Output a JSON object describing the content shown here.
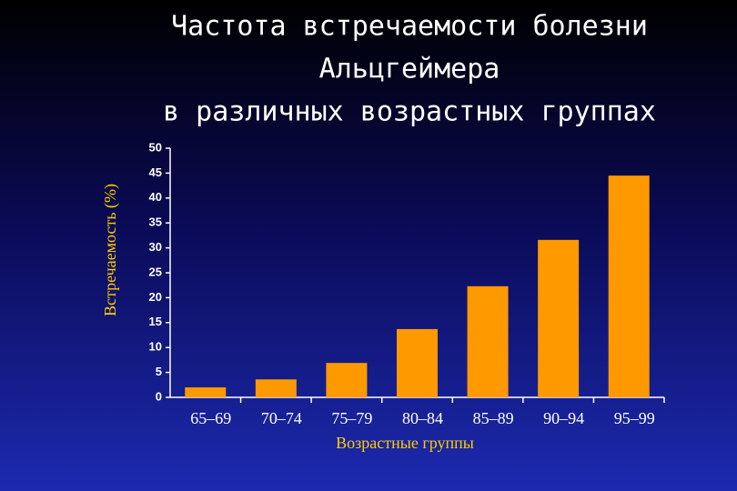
{
  "chart_data": {
    "type": "bar",
    "title": [
      "Частота встречаемости болезни",
      "Альцгеймера",
      "в различных возрастных группах"
    ],
    "x_label": "Возрастные группы",
    "y_label": "Встречаемость (%)",
    "categories": [
      "65–69",
      "70–74",
      "75–79",
      "80–84",
      "85–89",
      "90–94",
      "95–99"
    ],
    "values": [
      2.0,
      3.6,
      6.9,
      13.7,
      22.3,
      31.6,
      44.5
    ],
    "color": "#ff9900",
    "ylim": [
      0,
      50
    ],
    "yticks": [
      0,
      5,
      10,
      15,
      20,
      25,
      30,
      35,
      40,
      45,
      50
    ],
    "grid": false
  }
}
